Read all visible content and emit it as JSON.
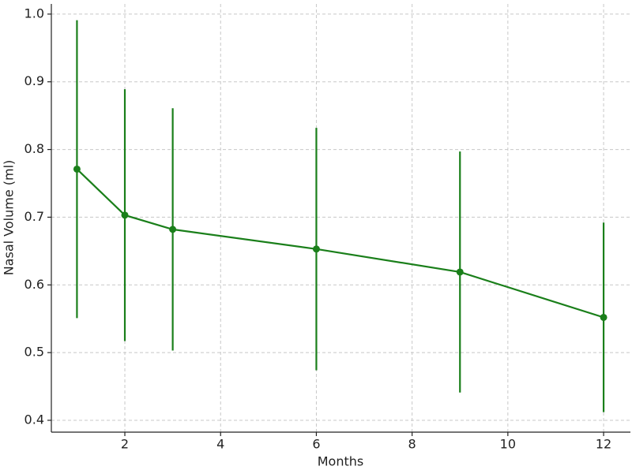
{
  "chart_data": {
    "type": "line",
    "xlabel": "Months",
    "ylabel": "Nasal Volume (ml)",
    "x": [
      1,
      2,
      3,
      6,
      9,
      12
    ],
    "series": [
      {
        "color": "#1a7f1a",
        "values": [
          0.771,
          0.703,
          0.682,
          0.653,
          0.619,
          0.552
        ],
        "errors": [
          0.22,
          0.186,
          0.179,
          0.179,
          0.178,
          0.14
        ]
      }
    ],
    "xlim": [
      0.465,
      12.56
    ],
    "ylim": [
      0.3825,
      1.015
    ],
    "xticks": [
      2,
      4,
      6,
      8,
      10,
      12
    ],
    "yticks": [
      0.4,
      0.5,
      0.6,
      0.7,
      0.8,
      0.9,
      {
        "value": 1,
        "label": "1.0"
      }
    ],
    "grid": true
  }
}
